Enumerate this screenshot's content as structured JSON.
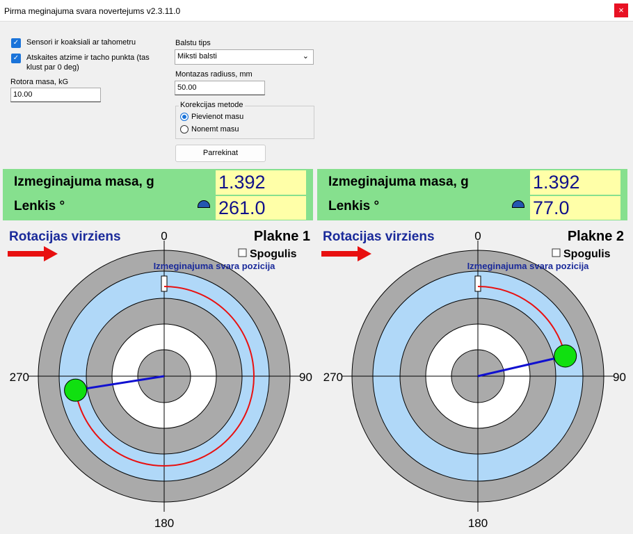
{
  "window": {
    "title": "Pirma meginajuma svara novertejums v2.3.11.0"
  },
  "settings": {
    "checkboxes": [
      {
        "label": "Sensori ir koaksiali ar tahometru",
        "checked": true
      },
      {
        "label": "Atskaites atzime ir tacho punkta (tas klust par 0 deg)",
        "checked": true
      }
    ],
    "rotor_mass": {
      "label": "Rotora masa, kG",
      "value": "10.00"
    },
    "balance_type": {
      "label": "Balstu tips",
      "value": "Miksti balsti"
    },
    "mount_radius": {
      "label": "Montazas radiuss, mm",
      "value": "50.00"
    },
    "correction": {
      "label": "Korekcijas metode",
      "options": [
        "Pievienot masu",
        "Nonemt masu"
      ],
      "selected": 0
    },
    "button": "Parrekinat"
  },
  "planes": [
    {
      "mass_label": "Izmeginajuma masa, g",
      "mass": "1.392",
      "angle_label": "Lenkis °",
      "angle": "261.0",
      "rotation_label": "Rotacijas virziens",
      "plane": "Plakne 1",
      "mirror": "Spogulis",
      "mirror_checked": false,
      "position_label": "Izmeginajuma svara pozicija",
      "axis_labels": [
        "0",
        "90",
        "180",
        "270"
      ]
    },
    {
      "mass_label": "Izmeginajuma masa, g",
      "mass": "1.392",
      "angle_label": "Lenkis °",
      "angle": "77.0",
      "rotation_label": "Rotacijas virziens",
      "plane": "Plakne 2",
      "mirror": "Spogulis",
      "mirror_checked": false,
      "position_label": "Izmeginajuma svara pozicija",
      "axis_labels": [
        "0",
        "90",
        "180",
        "270"
      ]
    }
  ]
}
